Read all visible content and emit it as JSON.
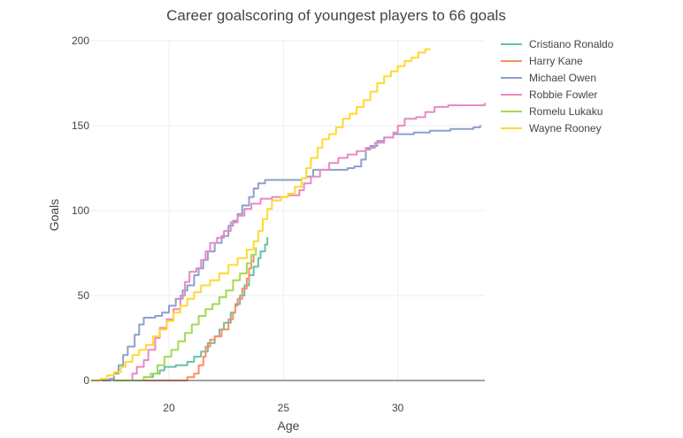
{
  "chart_data": {
    "type": "line",
    "title": "Career goalscoring of youngest players to 66 goals",
    "xlabel": "Age",
    "ylabel": "Goals",
    "xlim": [
      16.6,
      33.8
    ],
    "ylim": [
      0,
      200
    ],
    "x_ticks": [
      20,
      25,
      30
    ],
    "y_ticks": [
      0,
      50,
      100,
      150,
      200
    ],
    "grid": true,
    "legend_position": "top-right",
    "series": [
      {
        "name": "Cristiano Ronaldo",
        "color": "#66c2a5",
        "points": [
          [
            18.7,
            0
          ],
          [
            18.9,
            2
          ],
          [
            19.3,
            4
          ],
          [
            19.6,
            6
          ],
          [
            19.8,
            8
          ],
          [
            20.3,
            9
          ],
          [
            20.8,
            11
          ],
          [
            21.1,
            14
          ],
          [
            21.4,
            17
          ],
          [
            21.7,
            22
          ],
          [
            22.0,
            26
          ],
          [
            22.2,
            30
          ],
          [
            22.4,
            34
          ],
          [
            22.7,
            40
          ],
          [
            22.9,
            45
          ],
          [
            23.1,
            50
          ],
          [
            23.3,
            56
          ],
          [
            23.5,
            62
          ],
          [
            23.7,
            67
          ],
          [
            23.9,
            72
          ],
          [
            24.0,
            76
          ],
          [
            24.2,
            80
          ],
          [
            24.3,
            84
          ]
        ]
      },
      {
        "name": "Harry Kane",
        "color": "#fc8d62",
        "points": [
          [
            18.5,
            0
          ],
          [
            20.7,
            0
          ],
          [
            20.8,
            2
          ],
          [
            21.1,
            4
          ],
          [
            21.3,
            9
          ],
          [
            21.5,
            14
          ],
          [
            21.6,
            20
          ],
          [
            21.8,
            24
          ],
          [
            22.0,
            26
          ],
          [
            22.3,
            30
          ],
          [
            22.6,
            36
          ],
          [
            22.8,
            40
          ],
          [
            22.9,
            44
          ],
          [
            23.0,
            48
          ],
          [
            23.2,
            54
          ],
          [
            23.4,
            60
          ],
          [
            23.5,
            66
          ],
          [
            23.6,
            70
          ],
          [
            23.7,
            74
          ]
        ]
      },
      {
        "name": "Michael Owen",
        "color": "#8da0cb",
        "points": [
          [
            17.1,
            0
          ],
          [
            17.4,
            1
          ],
          [
            17.6,
            4
          ],
          [
            17.8,
            9
          ],
          [
            18.0,
            15
          ],
          [
            18.2,
            20
          ],
          [
            18.5,
            27
          ],
          [
            18.7,
            33
          ],
          [
            18.9,
            37
          ],
          [
            19.4,
            38
          ],
          [
            19.7,
            40
          ],
          [
            20.0,
            44
          ],
          [
            20.3,
            48
          ],
          [
            20.6,
            53
          ],
          [
            20.8,
            56
          ],
          [
            21.1,
            62
          ],
          [
            21.3,
            66
          ],
          [
            21.5,
            71
          ],
          [
            21.7,
            76
          ],
          [
            22.0,
            81
          ],
          [
            22.3,
            85
          ],
          [
            22.6,
            91
          ],
          [
            22.8,
            94
          ],
          [
            23.0,
            98
          ],
          [
            23.2,
            103
          ],
          [
            23.5,
            108
          ],
          [
            23.7,
            113
          ],
          [
            23.9,
            116
          ],
          [
            24.2,
            118
          ],
          [
            25.3,
            118
          ],
          [
            25.8,
            119
          ],
          [
            26.0,
            120
          ],
          [
            26.3,
            124
          ],
          [
            27.8,
            125
          ],
          [
            28.1,
            126
          ],
          [
            28.4,
            130
          ],
          [
            28.6,
            136
          ],
          [
            28.8,
            138
          ],
          [
            29.1,
            141
          ],
          [
            29.4,
            143
          ],
          [
            29.8,
            145
          ],
          [
            30.7,
            146
          ],
          [
            31.4,
            147
          ],
          [
            32.3,
            148
          ],
          [
            33.3,
            149
          ],
          [
            33.6,
            150
          ]
        ]
      },
      {
        "name": "Robbie Fowler",
        "color": "#e78ac3",
        "points": [
          [
            18.2,
            0
          ],
          [
            18.4,
            4
          ],
          [
            18.6,
            8
          ],
          [
            18.9,
            12
          ],
          [
            19.1,
            18
          ],
          [
            19.4,
            25
          ],
          [
            19.6,
            31
          ],
          [
            19.9,
            36
          ],
          [
            20.2,
            42
          ],
          [
            20.5,
            50
          ],
          [
            20.7,
            58
          ],
          [
            20.9,
            64
          ],
          [
            21.2,
            66
          ],
          [
            21.4,
            71
          ],
          [
            21.6,
            76
          ],
          [
            21.8,
            81
          ],
          [
            22.1,
            84
          ],
          [
            22.4,
            88
          ],
          [
            22.7,
            93
          ],
          [
            23.0,
            97
          ],
          [
            23.3,
            101
          ],
          [
            23.6,
            104
          ],
          [
            24.0,
            107
          ],
          [
            24.5,
            108
          ],
          [
            25.2,
            109
          ],
          [
            25.7,
            112
          ],
          [
            25.9,
            116
          ],
          [
            26.2,
            120
          ],
          [
            26.6,
            124
          ],
          [
            27.0,
            128
          ],
          [
            27.4,
            131
          ],
          [
            27.8,
            133
          ],
          [
            28.2,
            135
          ],
          [
            28.6,
            137
          ],
          [
            29.0,
            140
          ],
          [
            29.4,
            143
          ],
          [
            29.8,
            146
          ],
          [
            30.0,
            150
          ],
          [
            30.3,
            154
          ],
          [
            30.8,
            155
          ],
          [
            31.2,
            158
          ],
          [
            31.6,
            161
          ],
          [
            32.2,
            162
          ],
          [
            33.8,
            163
          ]
        ]
      },
      {
        "name": "Romelu Lukaku",
        "color": "#a6d854",
        "points": [
          [
            17.6,
            0
          ],
          [
            18.6,
            0
          ],
          [
            18.9,
            2
          ],
          [
            19.2,
            4
          ],
          [
            19.5,
            9
          ],
          [
            19.8,
            14
          ],
          [
            20.1,
            18
          ],
          [
            20.4,
            23
          ],
          [
            20.7,
            28
          ],
          [
            21.0,
            33
          ],
          [
            21.3,
            38
          ],
          [
            21.6,
            42
          ],
          [
            21.9,
            45
          ],
          [
            22.2,
            49
          ],
          [
            22.5,
            53
          ],
          [
            22.8,
            59
          ],
          [
            23.1,
            63
          ],
          [
            23.4,
            69
          ],
          [
            23.6,
            74
          ],
          [
            23.8,
            78
          ]
        ]
      },
      {
        "name": "Wayne Rooney",
        "color": "#ffd92f",
        "points": [
          [
            16.6,
            0
          ],
          [
            17.0,
            1
          ],
          [
            17.3,
            3
          ],
          [
            17.6,
            5
          ],
          [
            17.9,
            8
          ],
          [
            18.1,
            11
          ],
          [
            18.4,
            15
          ],
          [
            18.7,
            18
          ],
          [
            19.0,
            21
          ],
          [
            19.3,
            26
          ],
          [
            19.6,
            30
          ],
          [
            19.9,
            35
          ],
          [
            20.2,
            40
          ],
          [
            20.5,
            44
          ],
          [
            20.8,
            48
          ],
          [
            21.1,
            52
          ],
          [
            21.4,
            56
          ],
          [
            21.8,
            59
          ],
          [
            22.2,
            63
          ],
          [
            22.6,
            68
          ],
          [
            23.0,
            72
          ],
          [
            23.4,
            77
          ],
          [
            23.7,
            82
          ],
          [
            23.9,
            88
          ],
          [
            24.1,
            95
          ],
          [
            24.3,
            101
          ],
          [
            24.5,
            106
          ],
          [
            24.9,
            108
          ],
          [
            25.2,
            110
          ],
          [
            25.5,
            114
          ],
          [
            25.8,
            119
          ],
          [
            26.0,
            125
          ],
          [
            26.2,
            131
          ],
          [
            26.5,
            137
          ],
          [
            26.7,
            142
          ],
          [
            27.0,
            145
          ],
          [
            27.3,
            149
          ],
          [
            27.6,
            154
          ],
          [
            27.9,
            157
          ],
          [
            28.2,
            161
          ],
          [
            28.5,
            165
          ],
          [
            28.8,
            170
          ],
          [
            29.1,
            175
          ],
          [
            29.4,
            179
          ],
          [
            29.7,
            182
          ],
          [
            30.0,
            185
          ],
          [
            30.3,
            188
          ],
          [
            30.6,
            190
          ],
          [
            30.9,
            193
          ],
          [
            31.2,
            195
          ],
          [
            31.4,
            195
          ]
        ]
      }
    ]
  }
}
